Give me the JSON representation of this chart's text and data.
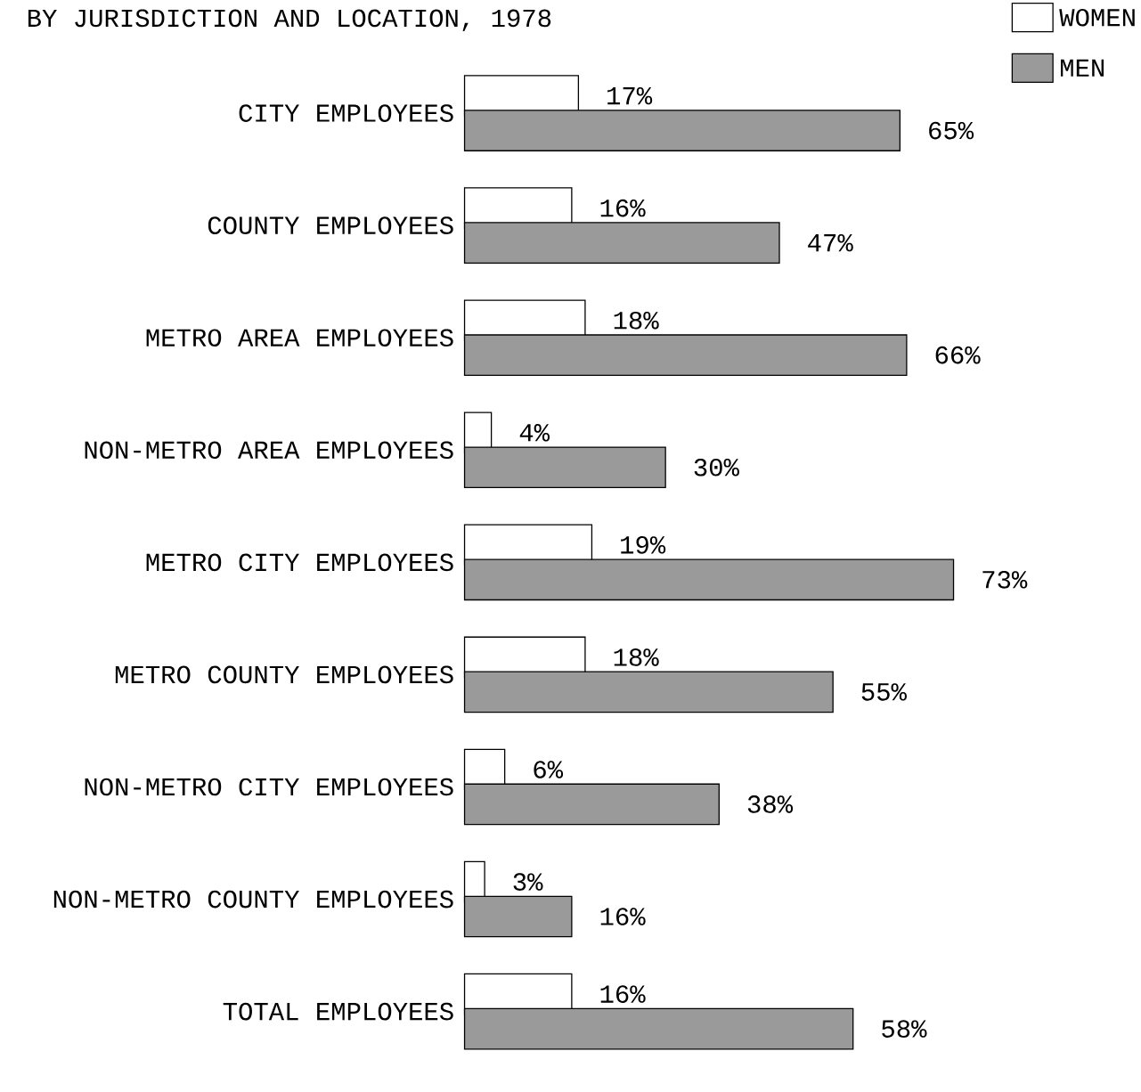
{
  "chart_data": {
    "type": "bar",
    "orientation": "horizontal",
    "title": "BY JURISDICTION AND LOCATION, 1978",
    "categories": [
      "CITY EMPLOYEES",
      "COUNTY EMPLOYEES",
      "METRO AREA EMPLOYEES",
      "NON-METRO AREA EMPLOYEES",
      "METRO CITY EMPLOYEES",
      "METRO COUNTY EMPLOYEES",
      "NON-METRO CITY EMPLOYEES",
      "NON-METRO COUNTY EMPLOYEES",
      "TOTAL EMPLOYEES"
    ],
    "series": [
      {
        "name": "WOMEN",
        "color": "#ffffff",
        "values": [
          17,
          16,
          18,
          4,
          19,
          18,
          6,
          3,
          16
        ],
        "value_labels": [
          "17%",
          "16%",
          "18%",
          "4%",
          "19%",
          "18%",
          "6%",
          "3%",
          "16%"
        ]
      },
      {
        "name": "MEN",
        "color": "#9a9a9a",
        "values": [
          65,
          47,
          66,
          30,
          73,
          55,
          38,
          16,
          58
        ],
        "value_labels": [
          "65%",
          "47%",
          "66%",
          "30%",
          "73%",
          "55%",
          "38%",
          "16%",
          "58%"
        ]
      }
    ],
    "legend": "top right"
  }
}
